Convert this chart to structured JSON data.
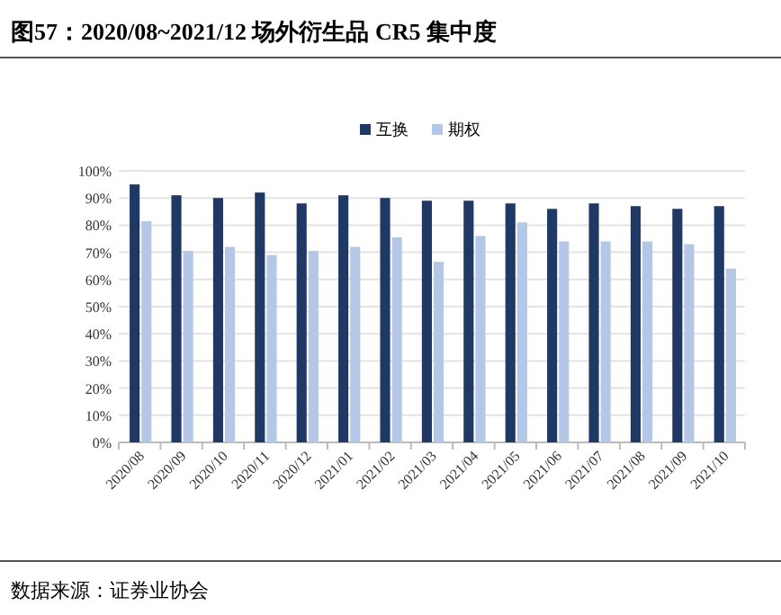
{
  "chart_data": {
    "type": "bar",
    "title": "图57：2020/08~2021/12 场外衍生品 CR5 集中度",
    "categories": [
      "2020/08",
      "2020/09",
      "2020/10",
      "2020/11",
      "2020/12",
      "2021/01",
      "2021/02",
      "2021/03",
      "2021/04",
      "2021/05",
      "2021/06",
      "2021/07",
      "2021/08",
      "2021/09",
      "2021/10"
    ],
    "series": [
      {
        "name": "互换",
        "color": "#1f3864",
        "values": [
          95,
          91,
          90,
          92,
          88,
          91,
          90,
          89,
          89,
          88,
          86,
          88,
          87,
          86,
          87
        ]
      },
      {
        "name": "期权",
        "color": "#b4c7e7",
        "values": [
          81.5,
          70.5,
          72,
          69,
          70.5,
          72,
          75.5,
          66.5,
          76,
          81,
          74,
          74,
          74,
          73,
          64
        ]
      }
    ],
    "ylim": [
      0,
      100
    ],
    "yticks": [
      {
        "value": 0,
        "label": "0%"
      },
      {
        "value": 10,
        "label": "10%"
      },
      {
        "value": 20,
        "label": "20%"
      },
      {
        "value": 30,
        "label": "30%"
      },
      {
        "value": 40,
        "label": "40%"
      },
      {
        "value": 50,
        "label": "50%"
      },
      {
        "value": 60,
        "label": "60%"
      },
      {
        "value": 70,
        "label": "70%"
      },
      {
        "value": 80,
        "label": "80%"
      },
      {
        "value": 90,
        "label": "90%"
      },
      {
        "value": 100,
        "label": "100%"
      }
    ],
    "grid": "y",
    "legend": "top",
    "annotations": [
      "数据来源：证券业协会"
    ]
  }
}
